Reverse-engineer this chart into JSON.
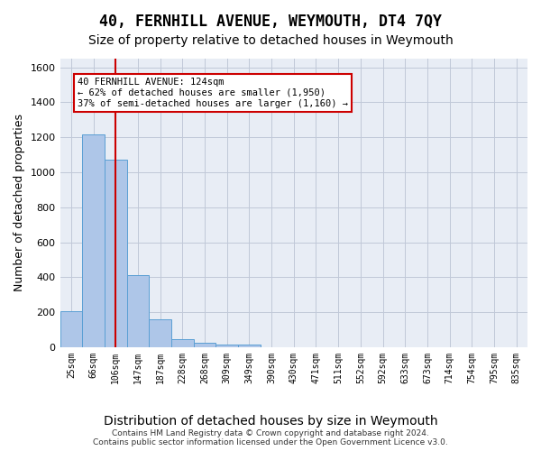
{
  "title": "40, FERNHILL AVENUE, WEYMOUTH, DT4 7QY",
  "subtitle": "Size of property relative to detached houses in Weymouth",
  "xlabel": "Distribution of detached houses by size in Weymouth",
  "ylabel": "Number of detached properties",
  "bar_values": [
    205,
    1215,
    1070,
    410,
    160,
    45,
    27,
    17,
    17,
    0,
    0,
    0,
    0,
    0,
    0,
    0,
    0,
    0,
    0,
    0,
    0
  ],
  "categories": [
    "25sqm",
    "66sqm",
    "106sqm",
    "147sqm",
    "187sqm",
    "228sqm",
    "268sqm",
    "309sqm",
    "349sqm",
    "390sqm",
    "430sqm",
    "471sqm",
    "511sqm",
    "552sqm",
    "592sqm",
    "633sqm",
    "673sqm",
    "714sqm",
    "754sqm",
    "795sqm",
    "835sqm"
  ],
  "bar_color": "#aec6e8",
  "bar_edge_color": "#5a9fd4",
  "property_line_x": 2.0,
  "property_line_color": "#cc0000",
  "annotation_text": "40 FERNHILL AVENUE: 124sqm\n← 62% of detached houses are smaller (1,950)\n37% of semi-detached houses are larger (1,160) →",
  "annotation_box_color": "#ffffff",
  "annotation_box_edge": "#cc0000",
  "ylim": [
    0,
    1650
  ],
  "yticks": [
    0,
    200,
    400,
    600,
    800,
    1000,
    1200,
    1400,
    1600
  ],
  "grid_color": "#c0c8d8",
  "bg_color": "#e8edf5",
  "footer": "Contains HM Land Registry data © Crown copyright and database right 2024.\nContains public sector information licensed under the Open Government Licence v3.0.",
  "title_fontsize": 12,
  "subtitle_fontsize": 10,
  "xlabel_fontsize": 10,
  "ylabel_fontsize": 9
}
